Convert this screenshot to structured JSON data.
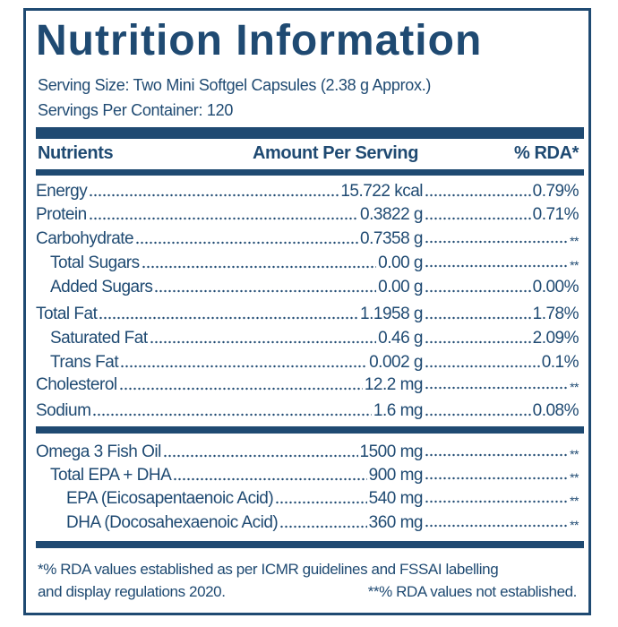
{
  "title": "Nutrition Information",
  "serving_size": "Serving Size: Two Mini Softgel Capsules (2.38 g Approx.)",
  "servings_per_container": "Servings Per Container: 120",
  "headers": {
    "nutrients": "Nutrients",
    "amount": "Amount Per Serving",
    "rda": "% RDA*"
  },
  "rows": [
    {
      "name": "Energy",
      "amount": "15.722 kcal",
      "rda": "0.79%"
    },
    {
      "name": "Protein",
      "amount": "0.3822 g",
      "rda": "0.71%"
    },
    {
      "name": "Carbohydrate",
      "amount": "0.7358 g",
      "rda": "**"
    },
    {
      "name": "Total Sugars",
      "amount": "0.00 g",
      "rda": "**"
    },
    {
      "name": "Added Sugars",
      "amount": "0.00 g",
      "rda": "0.00%"
    },
    {
      "name": "Total Fat",
      "amount": "1.1958 g",
      "rda": "1.78%"
    },
    {
      "name": "Saturated Fat",
      "amount": "0.46 g",
      "rda": "2.09%"
    },
    {
      "name": "Trans Fat",
      "amount": "0.002 g",
      "rda": "0.1%"
    },
    {
      "name": "Cholesterol",
      "amount": "12.2 mg",
      "rda": "**"
    },
    {
      "name": "Sodium",
      "amount": "1.6 mg",
      "rda": "0.08%"
    },
    {
      "name": "Omega 3 Fish Oil",
      "amount": "1500 mg",
      "rda": "**"
    },
    {
      "name": "Total EPA + DHA",
      "amount": "900 mg",
      "rda": "**"
    },
    {
      "name": "EPA (Eicosapentaenoic Acid)",
      "amount": "540 mg",
      "rda": "**"
    },
    {
      "name": "DHA (Docosahexaenoic Acid)",
      "amount": "360 mg",
      "rda": "**"
    }
  ],
  "footer": {
    "line1": "*% RDA values established as per ICMR guidelines and FSSAI labelling",
    "line2_left": "and display regulations 2020.",
    "line2_right": "**% RDA values not established."
  },
  "colors": {
    "brand": "#1f4a72"
  }
}
